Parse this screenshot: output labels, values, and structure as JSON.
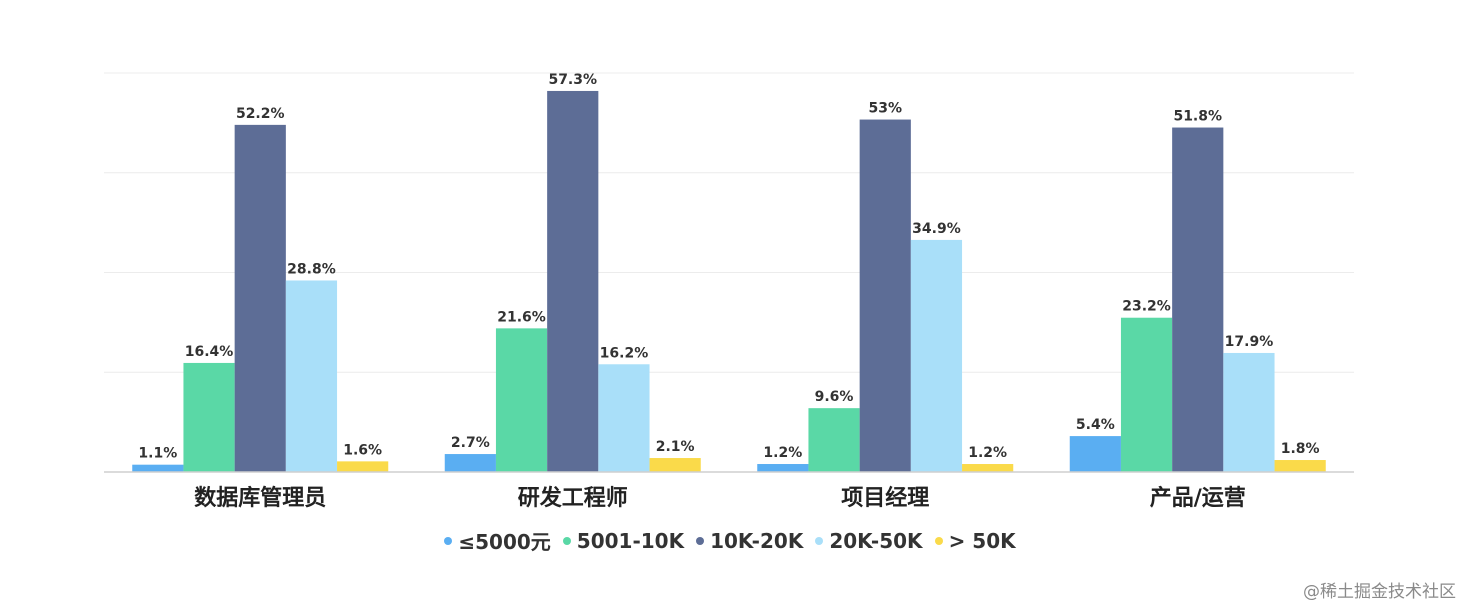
{
  "chart_data": {
    "type": "bar",
    "categories": [
      "数据库管理员",
      "研发工程师",
      "项目经理",
      "产品/运营"
    ],
    "series": [
      {
        "name": "≤5000元",
        "color": "#5aaef2",
        "values": [
          1.1,
          2.7,
          1.2,
          5.4
        ],
        "labels": [
          "1.1%",
          "2.7%",
          "1.2%",
          "5.4%"
        ]
      },
      {
        "name": "5001-10K",
        "color": "#5ad8a6",
        "values": [
          16.4,
          21.6,
          9.6,
          23.2
        ],
        "labels": [
          "16.4%",
          "21.6%",
          "9.6%",
          "23.2%"
        ]
      },
      {
        "name": "10K-20K",
        "color": "#5d6d96",
        "values": [
          52.2,
          57.3,
          53,
          51.8
        ],
        "labels": [
          "52.2%",
          "57.3%",
          "53%",
          "51.8%"
        ]
      },
      {
        "name": "20K-50K",
        "color": "#a9dff9",
        "values": [
          28.8,
          16.2,
          34.9,
          17.9
        ],
        "labels": [
          "28.8%",
          "16.2%",
          "34.9%",
          "17.9%"
        ]
      },
      {
        "name": "> 50K",
        "color": "#fada4a",
        "values": [
          1.6,
          2.1,
          1.2,
          1.8
        ],
        "labels": [
          "1.6%",
          "2.1%",
          "1.2%",
          "1.8%"
        ]
      }
    ],
    "ylim": [
      0,
      60
    ],
    "grid": true,
    "legend_position": "bottom"
  },
  "watermark": "@稀土掘金技术社区"
}
